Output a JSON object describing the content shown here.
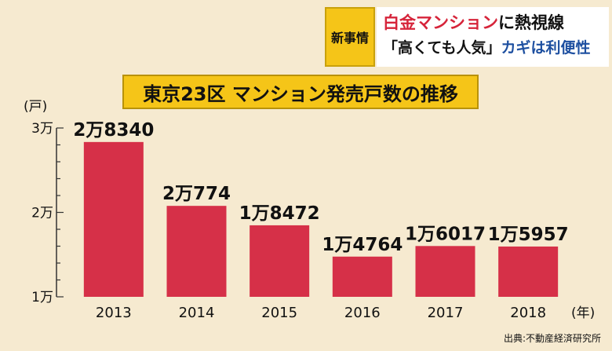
{
  "header": {
    "tag": "新事情",
    "headline_accent": "白金マンション",
    "headline_rest": "に熱視線",
    "subheadline_quote": "「高くても人気」",
    "subheadline_rest": "カギは利便性"
  },
  "source": "出典:不動産経済研究所",
  "chart_data": {
    "type": "bar",
    "title": "東京23区 マンション発売戸数の推移",
    "ylabel": "(戸)",
    "xlabel": "(年)",
    "categories": [
      "2013",
      "2014",
      "2015",
      "2016",
      "2017",
      "2018"
    ],
    "values": [
      28340,
      20774,
      18472,
      14764,
      16017,
      15957
    ],
    "value_labels": [
      "2万8340",
      "2万774",
      "1万8472",
      "1万4764",
      "1万6017",
      "1万5957"
    ],
    "ylim": [
      10000,
      30000
    ],
    "yticks": [
      10000,
      20000,
      30000
    ],
    "ytick_labels": [
      "1万",
      "2万",
      "3万"
    ],
    "bar_color": "#d63048"
  }
}
